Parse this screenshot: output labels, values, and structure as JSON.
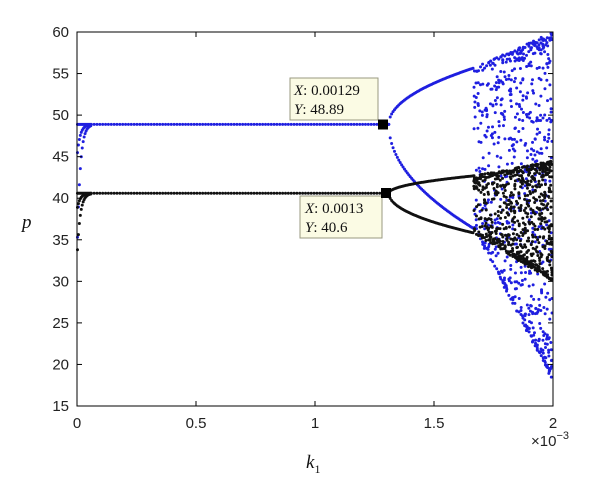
{
  "chart_data": {
    "type": "scatter",
    "title": "",
    "xlabel": "k",
    "xlabel_sub": "1",
    "ylabel": "p",
    "x_multiplier": "×10",
    "x_multiplier_exp": "−3",
    "xlim": [
      0,
      2
    ],
    "ylim": [
      15,
      60
    ],
    "grid": false,
    "x_ticks": [
      "0",
      "0.5",
      "1",
      "1.5",
      "2"
    ],
    "x_tick_values": [
      0,
      0.5,
      1,
      1.5,
      2
    ],
    "y_ticks": [
      "15",
      "20",
      "25",
      "30",
      "35",
      "40",
      "45",
      "50",
      "55",
      "60"
    ],
    "y_tick_values": [
      15,
      20,
      25,
      30,
      35,
      40,
      45,
      50,
      55,
      60
    ],
    "series": [
      {
        "color": "#1f1fe0",
        "stable_value": 48.89,
        "transient_start": 35.3,
        "first_bifurcation_x": 1.31,
        "second_bifurcation_x": 1.67,
        "branch_upper_at_second": 55.7,
        "branch_lower_at_second": 36.3,
        "chaos_range_at_end": [
          18,
          60
        ]
      },
      {
        "color": "#111111",
        "stable_value": 40.6,
        "transient_start": 33.8,
        "first_bifurcation_x": 1.31,
        "second_bifurcation_x": 1.67,
        "branch_upper_at_second": 42.7,
        "branch_lower_at_second": 35.8,
        "chaos_range_at_end": [
          30,
          44.5
        ]
      }
    ],
    "annotations": [
      {
        "series": 0,
        "x_label": "X",
        "x_value": ": 0.00129",
        "y_label": "Y",
        "y_value": ": 48.89",
        "point_x": 1.29,
        "point_y": 48.89
      },
      {
        "series": 1,
        "x_label": "X",
        "x_value": ": 0.0013",
        "y_label": "Y",
        "y_value": ": 40.6",
        "point_x": 1.3,
        "point_y": 40.6
      }
    ]
  }
}
